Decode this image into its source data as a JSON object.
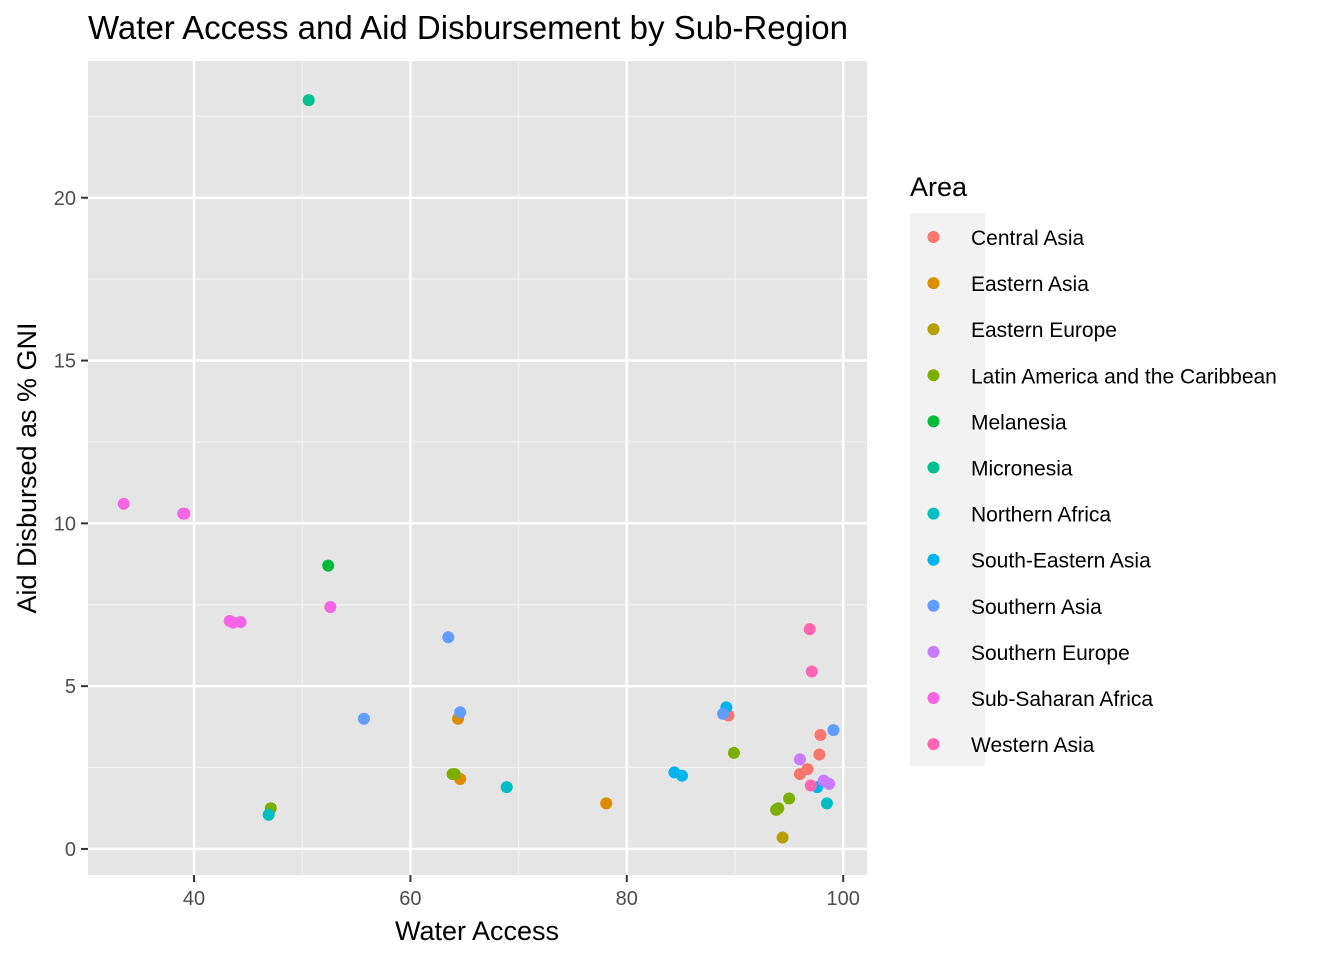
{
  "chart_data": {
    "type": "scatter",
    "title": "Water Access and Aid Disbursement by Sub-Region",
    "xlabel": "Water Access",
    "ylabel": "Aid Disbursed as % GNI",
    "xlim": [
      30.2,
      102.2
    ],
    "ylim": [
      -0.8,
      24.2
    ],
    "xticks": [
      40,
      60,
      80,
      100
    ],
    "yticks": [
      0,
      5,
      10,
      15,
      20
    ],
    "grid": true,
    "legend": {
      "title": "Area",
      "position": "right"
    },
    "series": [
      {
        "name": "Central Asia",
        "color": "#F8766D",
        "points": [
          [
            89.4,
            4.1
          ],
          [
            97.9,
            3.5
          ],
          [
            97.8,
            2.9
          ],
          [
            96.7,
            2.45
          ],
          [
            96.0,
            2.3
          ]
        ]
      },
      {
        "name": "Eastern Asia",
        "color": "#DE8C00",
        "points": [
          [
            64.4,
            4.0
          ],
          [
            64.6,
            2.15
          ],
          [
            78.1,
            1.4
          ]
        ]
      },
      {
        "name": "Eastern Europe",
        "color": "#B79F00",
        "points": [
          [
            94.4,
            0.35
          ]
        ]
      },
      {
        "name": "Latin America and the Caribbean",
        "color": "#7CAE00",
        "points": [
          [
            47.1,
            1.25
          ],
          [
            63.9,
            2.3
          ],
          [
            64.1,
            2.3
          ],
          [
            89.9,
            2.95
          ],
          [
            93.8,
            1.2
          ],
          [
            94.0,
            1.25
          ],
          [
            95.0,
            1.55
          ]
        ]
      },
      {
        "name": "Melanesia",
        "color": "#00BA38",
        "points": [
          [
            52.4,
            8.7
          ]
        ]
      },
      {
        "name": "Micronesia",
        "color": "#00C08B",
        "points": [
          [
            50.6,
            23.0
          ]
        ]
      },
      {
        "name": "Northern Africa",
        "color": "#00BFC4",
        "points": [
          [
            46.9,
            1.05
          ],
          [
            68.9,
            1.9
          ],
          [
            98.5,
            1.4
          ]
        ]
      },
      {
        "name": "South-Eastern Asia",
        "color": "#00B4F0",
        "points": [
          [
            84.4,
            2.35
          ],
          [
            85.1,
            2.25
          ],
          [
            89.2,
            4.35
          ],
          [
            97.6,
            1.9
          ]
        ]
      },
      {
        "name": "Southern Asia",
        "color": "#619CFF",
        "points": [
          [
            55.7,
            4.0
          ],
          [
            63.5,
            6.5
          ],
          [
            64.6,
            4.2
          ],
          [
            88.9,
            4.15
          ],
          [
            99.1,
            3.65
          ]
        ]
      },
      {
        "name": "Southern Europe",
        "color": "#C77CFF",
        "points": [
          [
            96.0,
            2.75
          ],
          [
            98.2,
            2.1
          ],
          [
            98.7,
            2.0
          ]
        ]
      },
      {
        "name": "Sub-Saharan Africa",
        "color": "#F564E3",
        "points": [
          [
            33.5,
            10.6
          ],
          [
            39.0,
            10.3
          ],
          [
            39.1,
            10.3
          ],
          [
            43.3,
            7.0
          ],
          [
            43.6,
            6.95
          ],
          [
            44.3,
            6.97
          ],
          [
            52.6,
            7.43
          ]
        ]
      },
      {
        "name": "Western Asia",
        "color": "#FF64B0",
        "points": [
          [
            96.9,
            6.75
          ],
          [
            97.1,
            5.45
          ],
          [
            97.0,
            1.95
          ]
        ]
      }
    ]
  }
}
